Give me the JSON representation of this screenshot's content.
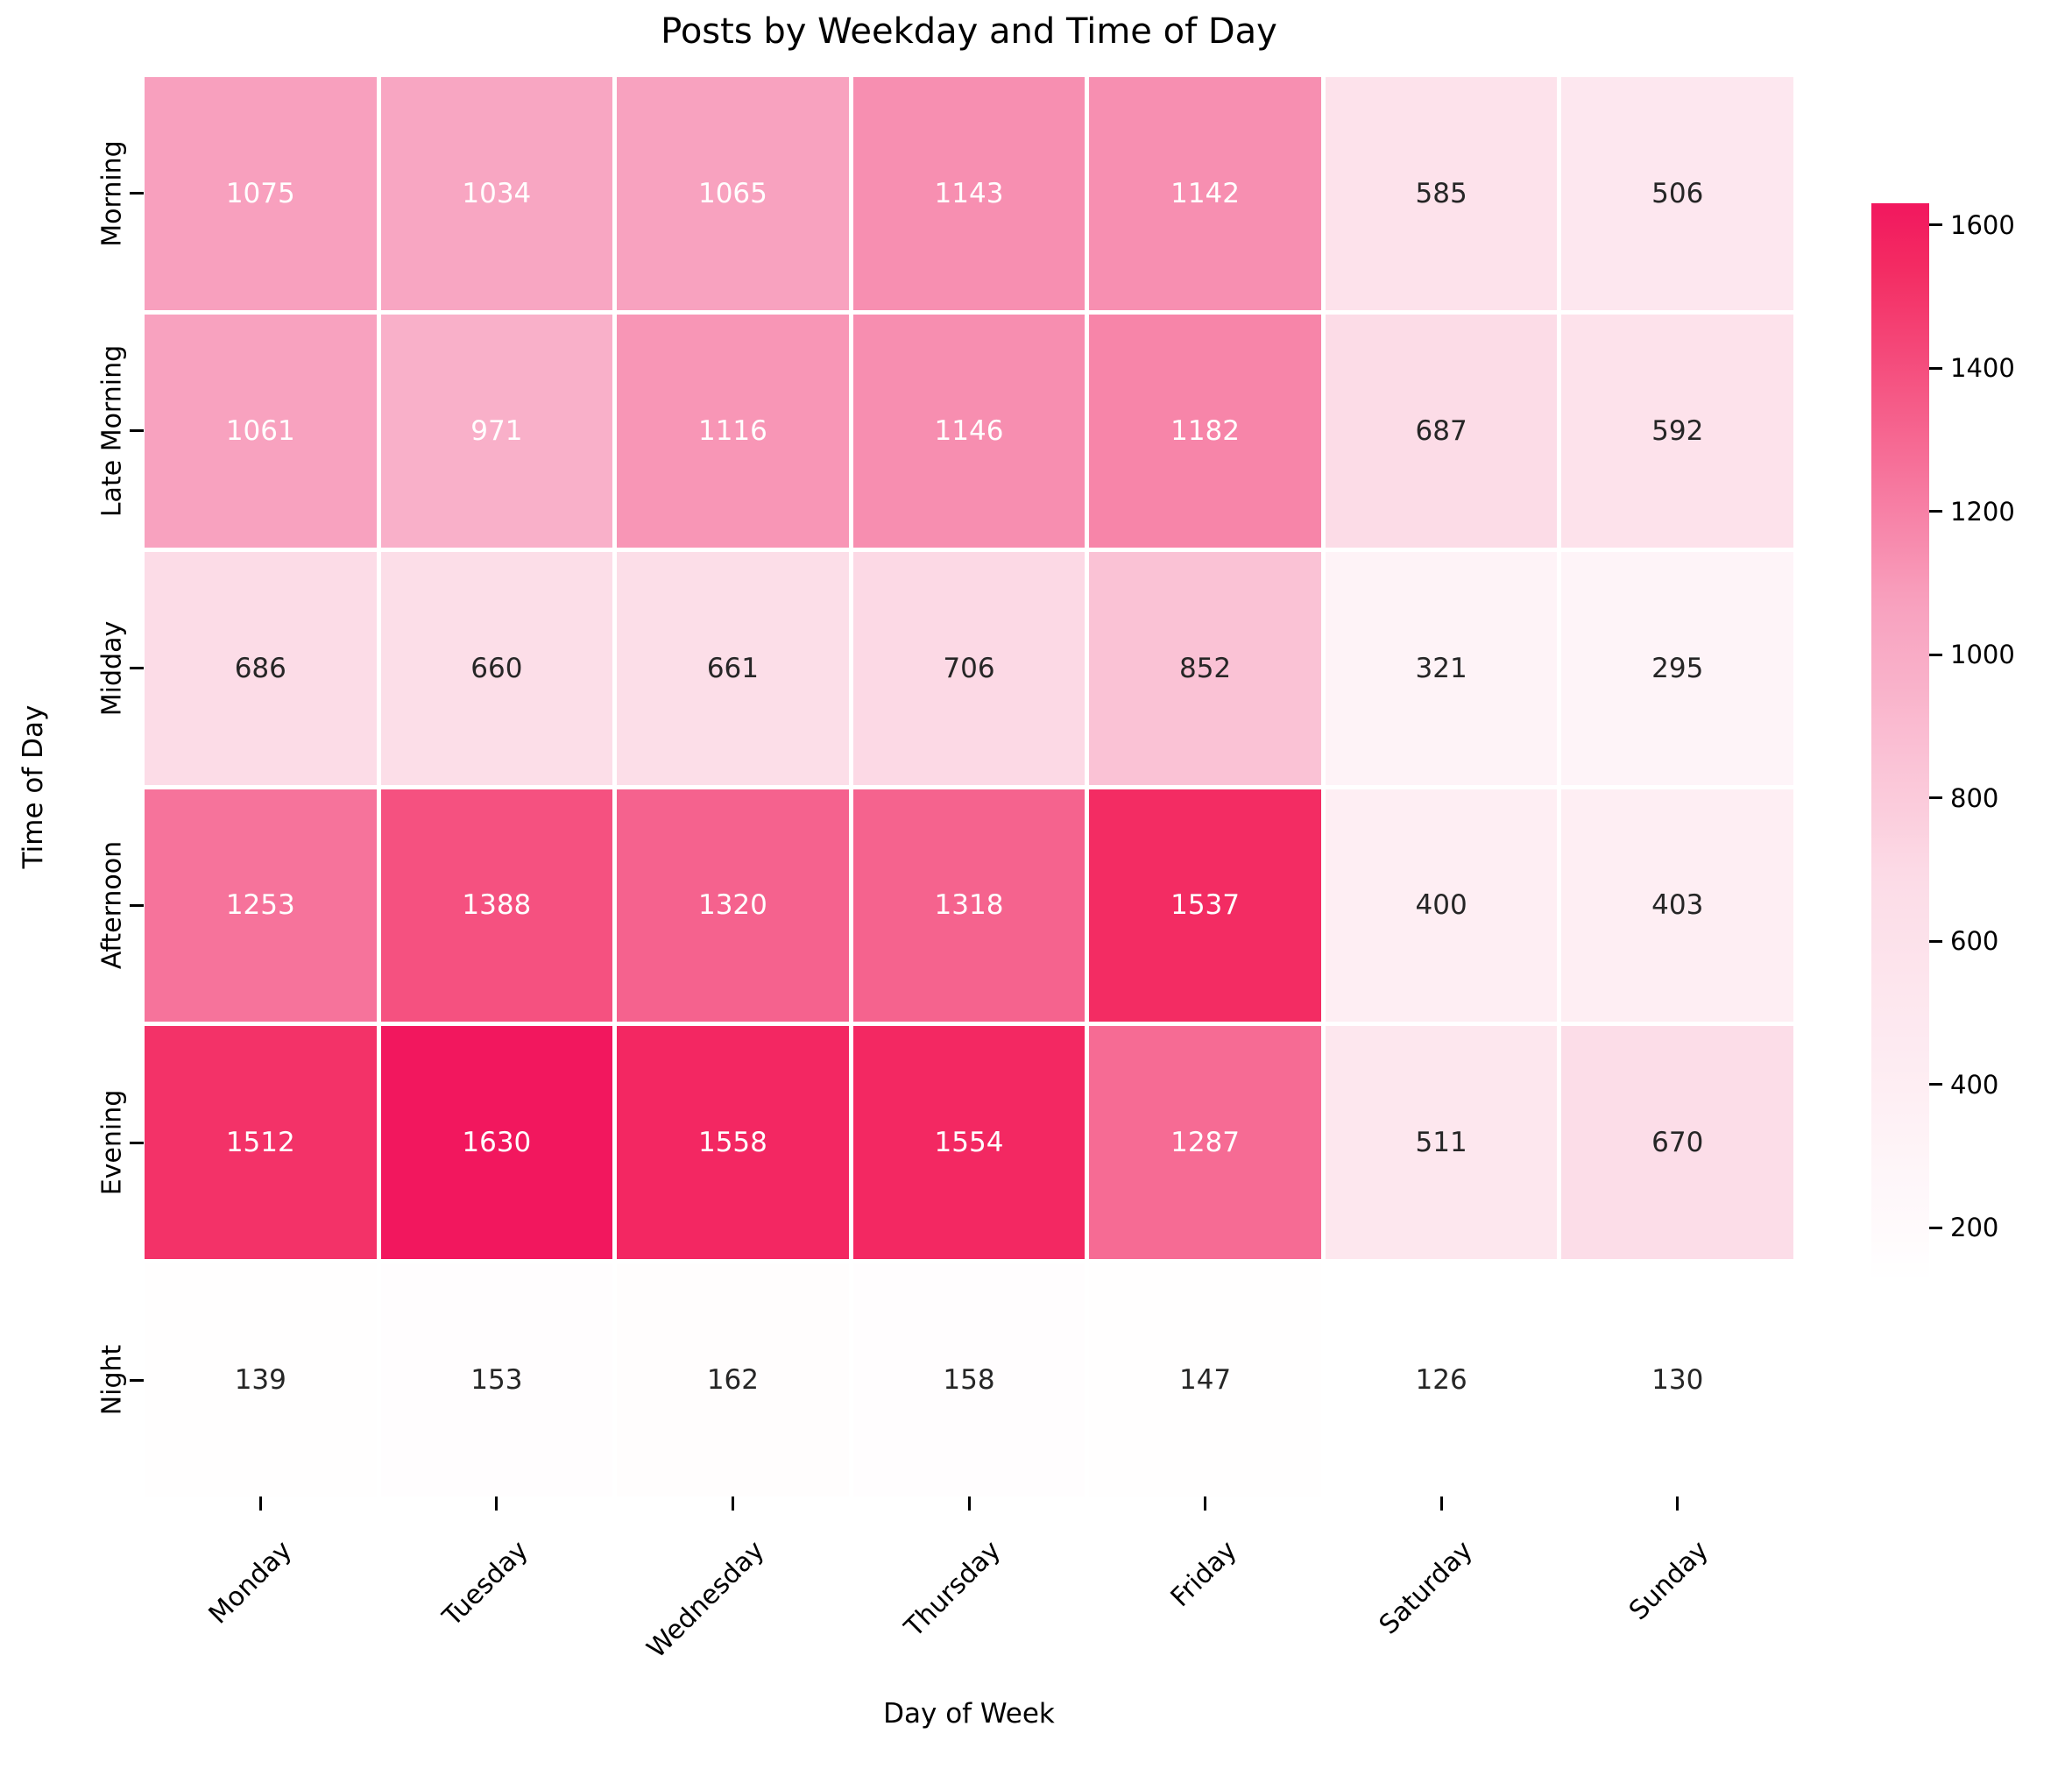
{
  "chart_data": {
    "type": "heatmap",
    "title": "Posts by Weekday and Time of Day",
    "xlabel": "Day of Week",
    "ylabel": "Time of Day",
    "columns": [
      "Monday",
      "Tuesday",
      "Wednesday",
      "Thursday",
      "Friday",
      "Saturday",
      "Sunday"
    ],
    "rows": [
      "Morning",
      "Late Morning",
      "Midday",
      "Afternoon",
      "Evening",
      "Night"
    ],
    "values": [
      [
        1075,
        1034,
        1065,
        1143,
        1142,
        585,
        506
      ],
      [
        1061,
        971,
        1116,
        1146,
        1182,
        687,
        592
      ],
      [
        686,
        660,
        661,
        706,
        852,
        321,
        295
      ],
      [
        1253,
        1388,
        1320,
        1318,
        1537,
        400,
        403
      ],
      [
        1512,
        1630,
        1558,
        1554,
        1287,
        511,
        670
      ],
      [
        139,
        153,
        162,
        158,
        147,
        126,
        130
      ]
    ],
    "vmin": 126,
    "vmax": 1630,
    "colorbar_ticks": [
      1600,
      1400,
      1200,
      1000,
      800,
      600,
      400,
      200
    ],
    "colorbar_position": "right",
    "grid": "white cell dividers",
    "colormap_stops": [
      [
        0.0,
        "#ffffff"
      ],
      [
        0.372,
        "#fcdce7"
      ],
      [
        0.631,
        "#f8a0be"
      ],
      [
        0.938,
        "#f32c63"
      ],
      [
        1.0,
        "#f2175e"
      ]
    ],
    "annotation_text_colors": {
      "light": "#ffffff",
      "dark": "#262626"
    }
  }
}
